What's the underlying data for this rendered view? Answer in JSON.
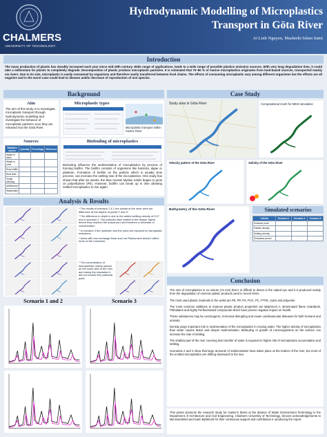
{
  "header": {
    "university": "CHALMERS",
    "university_sub": "UNIVERSITY OF TECHNOLOGY",
    "title_line1": "Hydrodynamic Modelling of Microplastics",
    "title_line2": "Transport in Göta River",
    "authors": "Ai Linh Nguyen, Mashreki Islam Sami"
  },
  "introduction": {
    "heading": "Introduction",
    "text": "The mass production of plastic has steadily increased each year since mid-19th century. Wide range of applications, leads to a wide range of possible plastics emission sources. With very long degradation time, it could take a millennium for plastic to completely degrade. Decomposition of plastic produce microplastic particles. It is estimated that 70–80 % of marine microplastics originates from land-based sources, transported mainly via rivers. Due to its size, microplastic is easily consumed by organisms and therefore easily transferred between food chains. The effects of consuming microplastic vary among different organisms but the effects are all negative and in the worst case could lead to disease and/or decrease of reproduction of one species."
  },
  "background": {
    "heading": "Background",
    "aim": {
      "heading": "Aim",
      "text": "The aim of this study is to investigate microplastic transport through hydrodynamic modelling and investigate the behavior of microplastic particles once they are released into the Göta River."
    },
    "types": {
      "heading": "Microplastic types",
      "caption": "Microplastic transport within marine River"
    },
    "sources": {
      "heading": "Sources",
      "columns": [
        "Statistics source",
        "Quantity",
        "Percentage",
        "Reference"
      ],
      "rows": [
        "Waste in cities",
        "Waste in ports",
        "Road traffic",
        "Boat hulls",
        "Textile washing",
        "Artificial turf",
        "Wastewater"
      ]
    },
    "biofouling": {
      "heading": "Biofouling of microplastics",
      "text": "Biofouling influence the sedimentation of microplastics by process of forming biofilm. The biofilm consists of organisms like bacteria, algae or plankton. Formation of biofilm on the particle which is usually slow process, can increase the settling rate of the microplastics. One study has shown that after six weeks, the blue mussel Mytilus edulis began to grow on polyethylene (PE). However, biofilm can break up in time allowing settled microplastics to rise again."
    }
  },
  "case_study": {
    "heading": "Case Study",
    "maps": [
      "Study area in Göta River",
      "Computational mesh for MIKE simulation",
      "Velocity pattern of the Göta River",
      "Salinity of the Göta River",
      "Bathymetry of the Göta River"
    ]
  },
  "analysis": {
    "heading": "Analysis & Results",
    "notes": [
      "* The results of scenario 1 & 2 are similar at the outer area but difference at the depths of points F and G.",
      "* The difference in depth is due to the added settling velocity of 0.07 m/s in scenario 2. The particles have settled in the deeper layers before they reached the output port and therefore a decrease of concentration.",
      "* In scenario 3 the upstream and the ports are exposed to microplastic emissions.",
      "* Areas with low exchange flows such as Fiskeumsen doesn't affect much to the maximum.",
      "* The concentration of microplastics mainly spread on the south side of the river and during the simulation it did not exceed this particular point."
    ]
  },
  "plots": {
    "left_heading": "Scenario 1 and 2",
    "right_heading": "Scenario 3"
  },
  "simulated": {
    "heading": "Simulated scenarios",
    "columns": [
      "Criteria",
      "Scenario 1",
      "Scenario 2",
      "Scenario 3"
    ],
    "rows": [
      "Emission point",
      "Particle density",
      "Settling velocity",
      "Simulation period"
    ]
  },
  "conclusion": {
    "heading": "Conclusion",
    "paragraphs": [
      "The size of microplastics is so minute (<5 mm) that it is difficult to detect in the naked eye and it is produced mainly from the degradation of common plastic products used in recent times.",
      "The most used plastic materials in the world are PE, PP, PS, PVC, PC, PTFE, nylon and polyester.",
      "The most common additives to improve plastic product properties are Bisphenol A, Brominated flame retardants, Phthalates and highly Perfluorinated compounds which have proven negative impact on health.",
      "These substances may be carcinogenic, hormonal disrupting and cause cardiovascular diseases for both humans and animals.",
      "Density plays important role in sedimentation of the microplastics in moving water. The higher density of microplastics than water causes faster and deeper sedimentation. Biofouling or growth of microorganisms on the surface can increase the rate of settling.",
      "The shallow part of the river covering less transfer of water is exposed to higher risk of microplastics accumulation and settling.",
      "Scenarios 2 and 3 show that large amounts of sedimentation have taken place at the bottom of the river, but most of the emitted microplastics are drifting downward to the sea."
    ]
  },
  "acknowledgement": {
    "text": "This poster presents the research study for master's thesis at the division of Water Environment Technology in the Department of Architecture and Civil Engineering, Chalmers University of Technology. Sincere acknowledgements to Mia Bondelind and Karin Björklund for their continuous support and contribution in producing the report."
  }
}
